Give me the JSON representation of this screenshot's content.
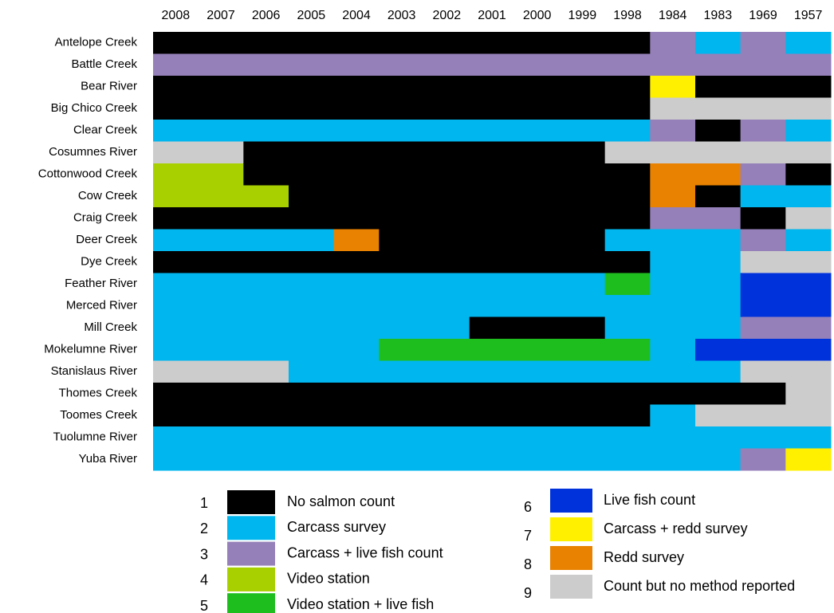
{
  "chart_data": {
    "type": "heatmap",
    "x": [
      "2008",
      "2007",
      "2006",
      "2005",
      "2004",
      "2003",
      "2002",
      "2001",
      "2000",
      "1999",
      "1998",
      "1984",
      "1983",
      "1969",
      "1957"
    ],
    "categories": [
      "Antelope Creek",
      "Battle Creek",
      "Bear River",
      "Big Chico Creek",
      "Clear Creek",
      "Cosumnes River",
      "Cottonwood Creek",
      "Cow Creek",
      "Craig Creek",
      "Deer Creek",
      "Dye Creek",
      "Feather River",
      "Merced River",
      "Mill Creek",
      "Mokelumne River",
      "Stanislaus River",
      "Thomes Creek",
      "Toomes Creek",
      "Tuolumne River",
      "Yuba River"
    ],
    "values": [
      [
        1,
        1,
        1,
        1,
        1,
        1,
        1,
        1,
        1,
        1,
        1,
        3,
        2,
        3,
        2
      ],
      [
        3,
        3,
        3,
        3,
        3,
        3,
        3,
        3,
        3,
        3,
        3,
        3,
        3,
        3,
        3
      ],
      [
        1,
        1,
        1,
        1,
        1,
        1,
        1,
        1,
        1,
        1,
        1,
        7,
        1,
        1,
        1
      ],
      [
        1,
        1,
        1,
        1,
        1,
        1,
        1,
        1,
        1,
        1,
        1,
        9,
        9,
        9,
        9
      ],
      [
        2,
        2,
        2,
        2,
        2,
        2,
        2,
        2,
        2,
        2,
        2,
        3,
        1,
        3,
        2
      ],
      [
        9,
        9,
        1,
        1,
        1,
        1,
        1,
        1,
        1,
        1,
        9,
        9,
        9,
        9,
        9
      ],
      [
        4,
        4,
        1,
        1,
        1,
        1,
        1,
        1,
        1,
        1,
        1,
        8,
        8,
        3,
        1
      ],
      [
        4,
        4,
        4,
        1,
        1,
        1,
        1,
        1,
        1,
        1,
        1,
        8,
        1,
        2,
        2
      ],
      [
        1,
        1,
        1,
        1,
        1,
        1,
        1,
        1,
        1,
        1,
        1,
        3,
        3,
        1,
        9
      ],
      [
        2,
        2,
        2,
        2,
        8,
        1,
        1,
        1,
        1,
        1,
        2,
        2,
        2,
        3,
        2
      ],
      [
        1,
        1,
        1,
        1,
        1,
        1,
        1,
        1,
        1,
        1,
        1,
        2,
        2,
        9,
        9
      ],
      [
        2,
        2,
        2,
        2,
        2,
        2,
        2,
        2,
        2,
        2,
        5,
        2,
        2,
        6,
        6
      ],
      [
        2,
        2,
        2,
        2,
        2,
        2,
        2,
        2,
        2,
        2,
        2,
        2,
        2,
        6,
        6
      ],
      [
        2,
        2,
        2,
        2,
        2,
        2,
        2,
        1,
        1,
        1,
        2,
        2,
        2,
        3,
        3
      ],
      [
        2,
        2,
        2,
        2,
        2,
        5,
        5,
        5,
        5,
        5,
        5,
        2,
        6,
        6,
        6
      ],
      [
        9,
        9,
        9,
        2,
        2,
        2,
        2,
        2,
        2,
        2,
        2,
        2,
        2,
        9,
        9
      ],
      [
        1,
        1,
        1,
        1,
        1,
        1,
        1,
        1,
        1,
        1,
        1,
        1,
        1,
        1,
        9
      ],
      [
        1,
        1,
        1,
        1,
        1,
        1,
        1,
        1,
        1,
        1,
        1,
        2,
        9,
        9,
        9
      ],
      [
        2,
        2,
        2,
        2,
        2,
        2,
        2,
        2,
        2,
        2,
        2,
        2,
        2,
        2,
        2
      ],
      [
        2,
        2,
        2,
        2,
        2,
        2,
        2,
        2,
        2,
        2,
        2,
        2,
        2,
        3,
        7
      ]
    ],
    "legend": [
      {
        "code": 1,
        "label": "No salmon count",
        "color": "#000000"
      },
      {
        "code": 2,
        "label": "Carcass survey",
        "color": "#00b6ee"
      },
      {
        "code": 3,
        "label": "Carcass + live fish count",
        "color": "#9580b9"
      },
      {
        "code": 4,
        "label": "Video station",
        "color": "#a8d000"
      },
      {
        "code": 5,
        "label": "Video station + live fish",
        "color": "#1fbe1f"
      },
      {
        "code": 6,
        "label": "Live fish count",
        "color": "#0032dc"
      },
      {
        "code": 7,
        "label": "Carcass + redd survey",
        "color": "#fff000"
      },
      {
        "code": 8,
        "label": "Redd survey",
        "color": "#e98200"
      },
      {
        "code": 9,
        "label": "Count but no method reported",
        "color": "#cccccc"
      }
    ]
  }
}
